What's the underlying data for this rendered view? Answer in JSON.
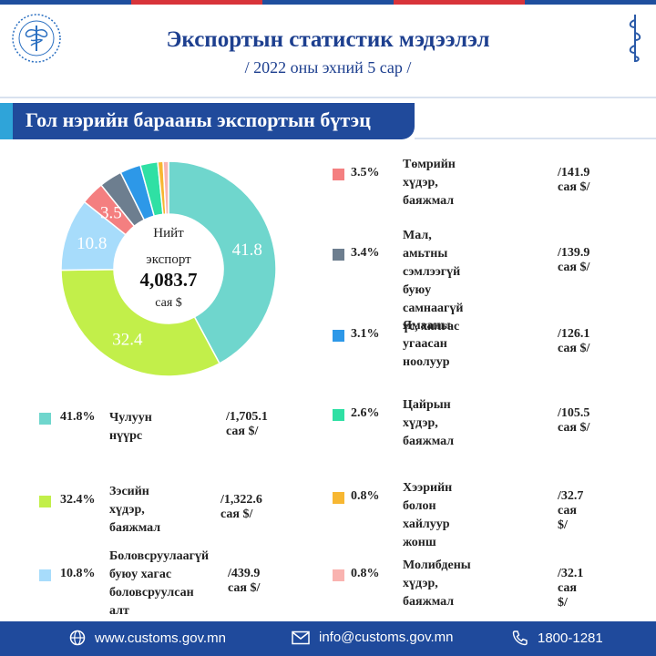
{
  "header": {
    "title": "Экспортын статистик мэдээлэл",
    "subtitle": "/ 2022 оны эхний 5 сар /"
  },
  "banner": {
    "label": "Гол нэрийн барааны экспортын бүтэц"
  },
  "center": {
    "line1": "Нийт",
    "line2": "экспорт",
    "value": "4,083.7",
    "unit": "сая $"
  },
  "chart_data": {
    "type": "pie",
    "donut": true,
    "total": "4,083.7",
    "unit": "сая $",
    "start_angle_deg": 0,
    "direction": "clockwise",
    "slices": [
      {
        "label": "Чулуун нүүрс",
        "pct": 41.8,
        "pct_label": "41.8%",
        "amount": "/1,705.1 сая $/",
        "color": "#6fd6cd",
        "inner_label": "41.8"
      },
      {
        "label": "Зэсийн хүдэр, баяжмал",
        "pct": 32.4,
        "pct_label": "32.4%",
        "amount": "/1,322.6 сая $/",
        "color": "#c2ef4a",
        "inner_label": "32.4"
      },
      {
        "label": "Боловсруулаагүй буюу хагас боловсруулсан алт",
        "pct": 10.8,
        "pct_label": "10.8%",
        "amount": "/439.9 сая $/",
        "color": "#a7dcfb",
        "inner_label": "10.8"
      },
      {
        "label": "Төмрийн хүдэр, баяжмал",
        "pct": 3.5,
        "pct_label": "3.5%",
        "amount": "/141.9 сая $/",
        "color": "#f47f80",
        "inner_label": "3.5"
      },
      {
        "label": "Мал, амьтны сэмлээгүй буюу самнаагүй үс, хялгас",
        "pct": 3.4,
        "pct_label": "3.4%",
        "amount": "/139.9 сая $/",
        "color": "#6d7e8f",
        "inner_label": ""
      },
      {
        "label": "Ямааны угаасан ноолуур",
        "pct": 3.1,
        "pct_label": "3.1%",
        "amount": "/126.1 сая $/",
        "color": "#2d98e8",
        "inner_label": ""
      },
      {
        "label": "Цайрын хүдэр, баяжмал",
        "pct": 2.6,
        "pct_label": "2.6%",
        "amount": "/105.5 сая $/",
        "color": "#2fe0a4",
        "inner_label": ""
      },
      {
        "label": "Хээрийн болон хайлуур жонш",
        "pct": 0.8,
        "pct_label": "0.8%",
        "amount": "/32.7 сая $/",
        "color": "#f7b732",
        "inner_label": ""
      },
      {
        "label": "Молибдены хүдэр, баяжмал",
        "pct": 0.8,
        "pct_label": "0.8%",
        "amount": "/32.1 сая $/",
        "color": "#f9b3b0",
        "inner_label": ""
      }
    ]
  },
  "legend_left": [
    {
      "pct": "41.8%",
      "name_lines": [
        "Чулуун нүүрс"
      ],
      "amount": "/1,705.1 сая $/",
      "color": "#6fd6cd"
    },
    {
      "pct": "32.4%",
      "name_lines": [
        "Зэсийн хүдэр,",
        "баяжмал"
      ],
      "amount": "/1,322.6 сая $/",
      "color": "#c2ef4a"
    },
    {
      "pct": "10.8%",
      "name_lines": [
        "Боловсруулаагүй",
        "буюу хагас",
        "боловсруулсан алт"
      ],
      "amount": "/439.9 сая $/",
      "color": "#a7dcfb"
    }
  ],
  "legend_right": [
    {
      "pct": "3.5%",
      "name_lines": [
        "Төмрийн хүдэр,",
        "баяжмал"
      ],
      "amount": "/141.9 сая $/",
      "color": "#f47f80"
    },
    {
      "pct": "3.4%",
      "name_lines": [
        "Мал, амьтны",
        "сэмлээгүй буюу",
        "самнаагүй үс, хялгас"
      ],
      "amount": "/139.9 сая $/",
      "color": "#6d7e8f"
    },
    {
      "pct": "3.1%",
      "name_lines": [
        "Ямааны угаасан",
        "ноолуур"
      ],
      "amount": "/126.1 сая $/",
      "color": "#2d98e8"
    },
    {
      "pct": "2.6%",
      "name_lines": [
        "Цайрын хүдэр,",
        "баяжмал"
      ],
      "amount": "/105.5 сая $/",
      "color": "#2fe0a4"
    },
    {
      "pct": "0.8%",
      "name_lines": [
        "Хээрийн болон",
        "хайлуур жонш"
      ],
      "amount": "/32.7 сая $/",
      "color": "#f7b732"
    },
    {
      "pct": "0.8%",
      "name_lines": [
        "Молибдены хүдэр,",
        "баяжмал"
      ],
      "amount": "/32.1 сая $/",
      "color": "#f9b3b0"
    }
  ],
  "footer": {
    "website": "www.customs.gov.mn",
    "email": "info@customs.gov.mn",
    "phone": "1800-1281",
    "icons": [
      "globe-icon",
      "mail-icon",
      "phone-icon"
    ]
  },
  "colors": {
    "primary": "#1f4a9c",
    "accent": "#2fa4d9",
    "title": "#1d3f8f"
  }
}
